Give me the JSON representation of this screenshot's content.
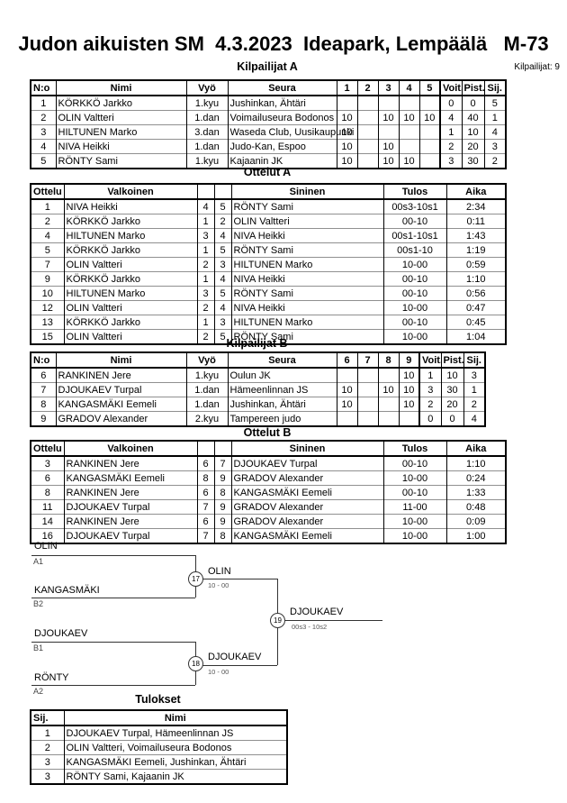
{
  "title": "Judon aikuisten SM  4.3.2023  Ideapark, Lempäälä   M-73",
  "competitors_count_label": "Kilpailijat: 9",
  "colors": {
    "border": "#000000",
    "row_separator": "#909090",
    "bracket_line": "#333333"
  },
  "pool_a": {
    "heading": "Kilpailijat A",
    "headers": [
      "N:o",
      "Nimi",
      "Vyö",
      "Seura",
      "1",
      "2",
      "3",
      "4",
      "5",
      "Voit.",
      "Pist.",
      "Sij."
    ],
    "rows": [
      [
        "1",
        "KÖRKKÖ Jarkko",
        "1.kyu",
        "Jushinkan, Ähtäri",
        "",
        "",
        "",
        "",
        "",
        "0",
        "0",
        "5"
      ],
      [
        "2",
        "OLIN Valtteri",
        "1.dan",
        "Voimailuseura Bodonos",
        "10",
        "",
        "10",
        "10",
        "10",
        "4",
        "40",
        "1"
      ],
      [
        "3",
        "HILTUNEN Marko",
        "3.dan",
        "Waseda Club, Uusikaupunki",
        "10",
        "",
        "",
        "",
        "",
        "1",
        "10",
        "4"
      ],
      [
        "4",
        "NIVA Heikki",
        "1.dan",
        "Judo-Kan, Espoo",
        "10",
        "",
        "10",
        "",
        "",
        "2",
        "20",
        "3"
      ],
      [
        "5",
        "RÖNTY Sami",
        "1.kyu",
        "Kajaanin JK",
        "10",
        "",
        "10",
        "10",
        "",
        "3",
        "30",
        "2"
      ]
    ]
  },
  "matches_a": {
    "heading": "Ottelut A",
    "headers": [
      "Ottelu",
      "Valkoinen",
      "",
      "",
      "Sininen",
      "Tulos",
      "Aika"
    ],
    "rows": [
      [
        "1",
        "NIVA Heikki",
        "4",
        "5",
        "RÖNTY Sami",
        "00s3-10s1",
        "2:34"
      ],
      [
        "2",
        "KÖRKKÖ Jarkko",
        "1",
        "2",
        "OLIN Valtteri",
        "00-10",
        "0:11"
      ],
      [
        "4",
        "HILTUNEN Marko",
        "3",
        "4",
        "NIVA Heikki",
        "00s1-10s1",
        "1:43"
      ],
      [
        "5",
        "KÖRKKÖ Jarkko",
        "1",
        "5",
        "RÖNTY Sami",
        "00s1-10",
        "1:19"
      ],
      [
        "7",
        "OLIN Valtteri",
        "2",
        "3",
        "HILTUNEN Marko",
        "10-00",
        "0:59"
      ],
      [
        "9",
        "KÖRKKÖ Jarkko",
        "1",
        "4",
        "NIVA Heikki",
        "00-10",
        "1:10"
      ],
      [
        "10",
        "HILTUNEN Marko",
        "3",
        "5",
        "RÖNTY Sami",
        "00-10",
        "0:56"
      ],
      [
        "12",
        "OLIN Valtteri",
        "2",
        "4",
        "NIVA Heikki",
        "10-00",
        "0:47"
      ],
      [
        "13",
        "KÖRKKÖ Jarkko",
        "1",
        "3",
        "HILTUNEN Marko",
        "00-10",
        "0:45"
      ],
      [
        "15",
        "OLIN Valtteri",
        "2",
        "5",
        "RÖNTY Sami",
        "10-00",
        "1:04"
      ]
    ]
  },
  "pool_b": {
    "heading": "Kilpailijat B",
    "headers": [
      "N:o",
      "Nimi",
      "Vyö",
      "Seura",
      "6",
      "7",
      "8",
      "9",
      "Voit.",
      "Pist.",
      "Sij."
    ],
    "rows": [
      [
        "6",
        "RANKINEN Jere",
        "1.kyu",
        "Oulun JK",
        "",
        "",
        "",
        "10",
        "1",
        "10",
        "3"
      ],
      [
        "7",
        "DJOUKAEV Turpal",
        "1.dan",
        "Hämeenlinnan JS",
        "10",
        "",
        "10",
        "10",
        "3",
        "30",
        "1"
      ],
      [
        "8",
        "KANGASMÄKI Eemeli",
        "1.dan",
        "Jushinkan, Ähtäri",
        "10",
        "",
        "",
        "10",
        "2",
        "20",
        "2"
      ],
      [
        "9",
        "GRADOV Alexander",
        "2.kyu",
        "Tampereen judo",
        "",
        "",
        "",
        "",
        "0",
        "0",
        "4"
      ]
    ]
  },
  "matches_b": {
    "heading": "Ottelut B",
    "headers": [
      "Ottelu",
      "Valkoinen",
      "",
      "",
      "Sininen",
      "Tulos",
      "Aika"
    ],
    "rows": [
      [
        "3",
        "RANKINEN Jere",
        "6",
        "7",
        "DJOUKAEV Turpal",
        "00-10",
        "1:10"
      ],
      [
        "6",
        "KANGASMÄKI Eemeli",
        "8",
        "9",
        "GRADOV Alexander",
        "10-00",
        "0:24"
      ],
      [
        "8",
        "RANKINEN Jere",
        "6",
        "8",
        "KANGASMÄKI Eemeli",
        "00-10",
        "1:33"
      ],
      [
        "11",
        "DJOUKAEV Turpal",
        "7",
        "9",
        "GRADOV Alexander",
        "11-00",
        "0:48"
      ],
      [
        "14",
        "RANKINEN Jere",
        "6",
        "9",
        "GRADOV Alexander",
        "10-00",
        "0:09"
      ],
      [
        "16",
        "DJOUKAEV Turpal",
        "7",
        "8",
        "KANGASMÄKI Eemeli",
        "10-00",
        "1:00"
      ]
    ]
  },
  "bracket": {
    "sf1": {
      "top": "OLIN",
      "top_seed": "A1",
      "bottom": "KANGASMÄKI",
      "bottom_seed": "B2",
      "match_no": "17",
      "winner": "OLIN",
      "score": "10 - 00"
    },
    "sf2": {
      "top": "DJOUKAEV",
      "top_seed": "B1",
      "bottom": "RÖNTY",
      "bottom_seed": "A2",
      "match_no": "18",
      "winner": "DJOUKAEV",
      "score": "10 - 00"
    },
    "final": {
      "match_no": "19",
      "winner": "DJOUKAEV",
      "score": "00s3 - 10s2"
    }
  },
  "results": {
    "heading": "Tulokset",
    "headers": [
      "Sij.",
      "Nimi"
    ],
    "rows": [
      [
        "1",
        "DJOUKAEV Turpal, Hämeenlinnan JS"
      ],
      [
        "2",
        "OLIN Valtteri, Voimailuseura Bodonos"
      ],
      [
        "3",
        "KANGASMÄKI Eemeli, Jushinkan, Ähtäri"
      ],
      [
        "3",
        "RÖNTY Sami, Kajaanin JK"
      ]
    ]
  }
}
